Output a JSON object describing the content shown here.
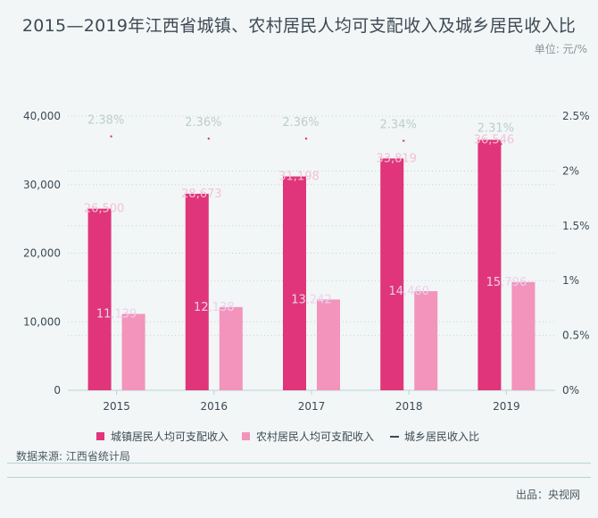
{
  "title": "2015—2019年江西省城镇、农村居民人均可支配收入及城乡居民收入比",
  "unit_label": "单位: 元/%",
  "source": "数据来源: 江西省统计局",
  "credit": "出品：央视网",
  "chart_data": {
    "type": "bar",
    "categories": [
      "2015",
      "2016",
      "2017",
      "2018",
      "2019"
    ],
    "series": [
      {
        "name": "城镇居民人均可支配收入",
        "values": [
          26500,
          28673,
          31198,
          33819,
          36546
        ],
        "labels": [
          "26,500",
          "28,673",
          "31,198",
          "33,819",
          "36,546"
        ],
        "color": "#e0357a",
        "axis": "left"
      },
      {
        "name": "农村居民人均可支配收入",
        "values": [
          11139,
          12138,
          13242,
          14460,
          15796
        ],
        "labels": [
          "11,139",
          "12,138",
          "13,242",
          "14,460",
          "15,796"
        ],
        "color": "#f294bc",
        "axis": "left"
      },
      {
        "name": "城乡居民收入比",
        "type": "line",
        "values": [
          2.38,
          2.36,
          2.36,
          2.34,
          2.31
        ],
        "labels": [
          "2.38%",
          "2.36%",
          "2.36%",
          "2.34%",
          "2.31%"
        ],
        "color": "#3c4a55",
        "axis": "right"
      }
    ],
    "y_left": {
      "lim": [
        0,
        40000
      ],
      "ticks": [
        0,
        10000,
        20000,
        30000,
        40000
      ],
      "tick_labels": [
        "0",
        "10,000",
        "20,000",
        "30,000",
        "40,000"
      ]
    },
    "y_right": {
      "lim": [
        0,
        2.5
      ],
      "ticks": [
        0,
        0.5,
        1,
        1.5,
        2,
        2.5
      ],
      "tick_labels": [
        "0%",
        "0.5%",
        "1%",
        "1.5%",
        "2%",
        "2.5%"
      ]
    },
    "grid": true,
    "legend_position": "bottom-center"
  }
}
